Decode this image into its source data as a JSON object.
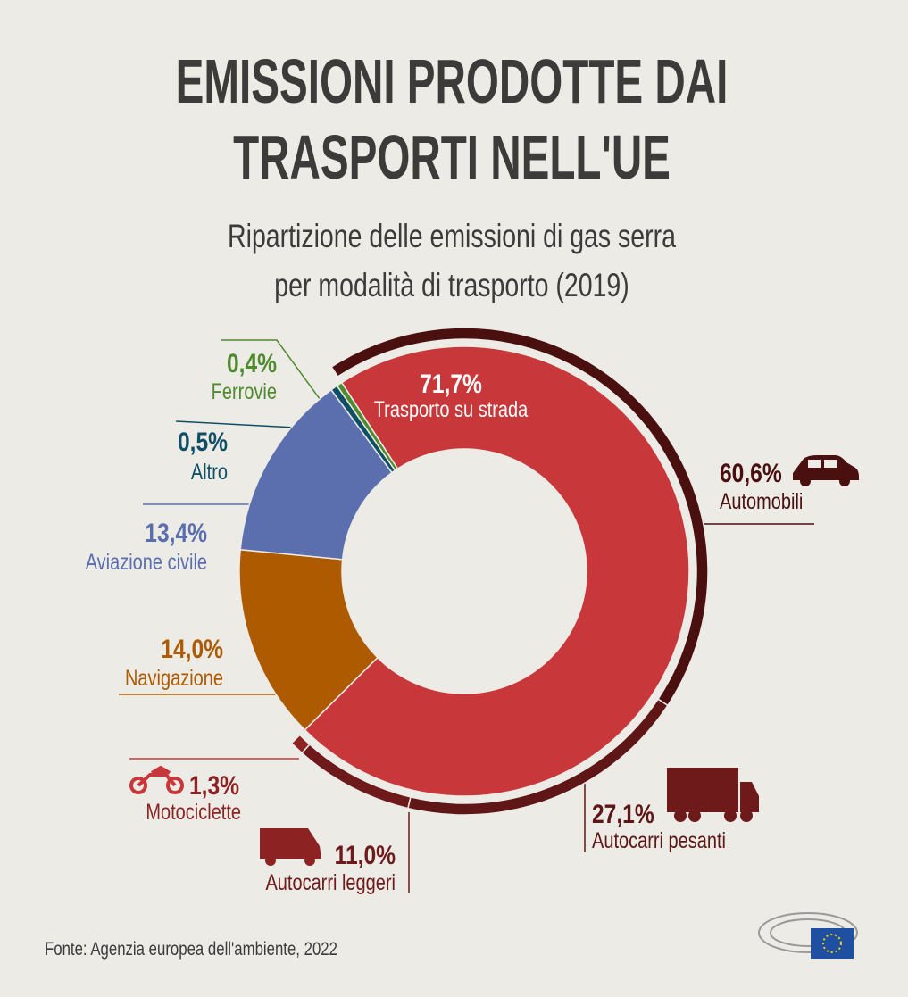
{
  "chart_data": [
    {
      "type": "donut",
      "title": [
        "EMISSIONI PRODOTTE DAI",
        "TRASPORTI NELL'UE"
      ],
      "subtitle": [
        "Ripartizione delle emissioni di gas serra",
        "per modalità di trasporto (2019)"
      ],
      "categories": [
        "Trasporto su strada",
        "Navigazione",
        "Aviazione civile",
        "Altro",
        "Ferrovie"
      ],
      "values": [
        71.7,
        14.0,
        13.4,
        0.5,
        0.4
      ],
      "value_labels": [
        "71,7%",
        "14,0%",
        "13,4%",
        "0,5%",
        "0,4%"
      ],
      "colors": [
        "#c8373a",
        "#ad5a00",
        "#5b6fae",
        "#0f4f66",
        "#4e8a2e"
      ],
      "source": "Fonte: Agenzia europea dell'ambiente, 2022"
    },
    {
      "type": "ring",
      "categories": [
        "Automobili",
        "Autocarri pesanti",
        "Autocarri leggeri",
        "Motociclette"
      ],
      "values": [
        60.6,
        27.1,
        11.0,
        1.3
      ],
      "value_labels": [
        "60,6%",
        "27,1%",
        "11,0%",
        "1,3%"
      ],
      "colors": [
        "#4a1010",
        "#5e1616",
        "#6e1a1a",
        "#8c2222"
      ]
    }
  ]
}
